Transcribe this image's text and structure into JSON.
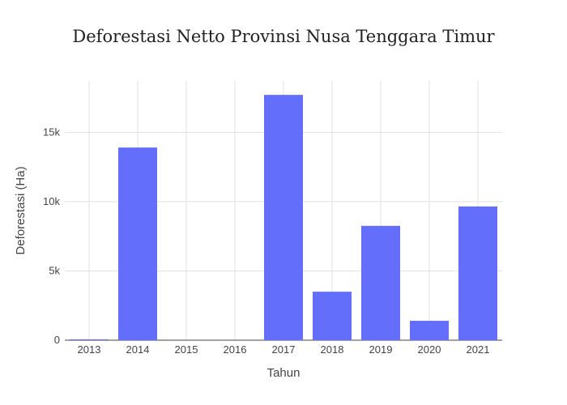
{
  "chart_data": {
    "type": "bar",
    "title": "Deforestasi Netto Provinsi Nusa Tenggara Timur",
    "xlabel": "Tahun",
    "ylabel": "Deforestasi (Ha)",
    "categories": [
      "2013",
      "2014",
      "2015",
      "2016",
      "2017",
      "2018",
      "2019",
      "2020",
      "2021"
    ],
    "values": [
      60,
      13900,
      0,
      0,
      17700,
      3500,
      8250,
      1400,
      9650
    ],
    "ylim": [
      0,
      18700
    ],
    "yticks": [
      0,
      5000,
      10000,
      15000
    ],
    "ytick_labels": [
      "0",
      "5k",
      "10k",
      "15k"
    ],
    "grid": true,
    "bar_color": "#636efa"
  }
}
